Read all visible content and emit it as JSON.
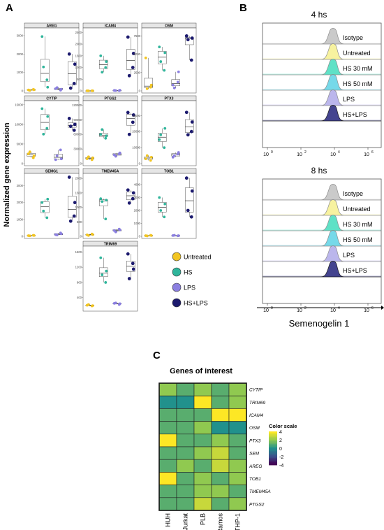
{
  "panels": {
    "a": "A",
    "b": "B",
    "c": "C"
  },
  "panel_a": {
    "ylabel": "Normalized gene expression",
    "colors": {
      "Untreated": "#f2c522",
      "HS": "#2fb59b",
      "LPS": "#8b7fe0",
      "HS+LPS": "#1c1a6e"
    },
    "legend": [
      "Untreated",
      "HS",
      "LPS",
      "HS+LPS"
    ],
    "facets": [
      {
        "gene": "AREG",
        "ticks": [
          "0",
          "1000",
          "2000",
          "3000"
        ],
        "ymax": 3300,
        "points": [
          [
            50,
            80,
            30,
            60
          ],
          [
            2950,
            600,
            1300,
            200
          ],
          [
            120,
            40,
            180,
            90
          ],
          [
            2000,
            400,
            150,
            1450
          ]
        ]
      },
      {
        "gene": "ICAM4",
        "ticks": [
          "0",
          "500",
          "1000",
          "1500",
          "2000",
          "2500"
        ],
        "ymax": 2600,
        "points": [
          [
            5,
            8,
            3,
            6
          ],
          [
            1500,
            1000,
            800,
            1250
          ],
          [
            20,
            10,
            15,
            30
          ],
          [
            2300,
            1000,
            650,
            1600
          ]
        ]
      },
      {
        "gene": "OSM",
        "ticks": [
          "0",
          "2500",
          "5000",
          "7500"
        ],
        "ymax": 8300,
        "points": [
          [
            4500,
            500,
            300,
            800
          ],
          [
            6000,
            2800,
            4000,
            5200
          ],
          [
            800,
            1200,
            400,
            2600
          ],
          [
            7500,
            4200,
            7000,
            7200
          ]
        ]
      },
      {
        "gene": "CYTIP",
        "ticks": [
          "0",
          "5000",
          "10000",
          "15000"
        ],
        "ymax": 15500,
        "points": [
          [
            2500,
            1500,
            3000,
            2000
          ],
          [
            14000,
            9000,
            7500,
            12000
          ],
          [
            1000,
            3500,
            2000,
            1200
          ],
          [
            11500,
            8500,
            9500,
            10000
          ]
        ]
      },
      {
        "gene": "PTGS2",
        "ticks": [
          "0",
          "30000",
          "60000",
          "90000",
          "120000"
        ],
        "ymax": 125000,
        "points": [
          [
            10000,
            8000,
            14000,
            12000
          ],
          [
            60000,
            52000,
            70000,
            57000
          ],
          [
            18000,
            20000,
            15000,
            22000
          ],
          [
            105000,
            85000,
            60000,
            100000
          ]
        ]
      },
      {
        "gene": "PTX3",
        "ticks": [
          "0",
          "10000",
          "20000",
          "30000"
        ],
        "ymax": 38000,
        "points": [
          [
            3000,
            2000,
            5000,
            4000
          ],
          [
            15000,
            10000,
            18000,
            22000
          ],
          [
            4000,
            6000,
            5000,
            7000
          ],
          [
            32000,
            20000,
            18000,
            26000
          ]
        ]
      },
      {
        "gene": "SEMG1",
        "ticks": [
          "0",
          "1000",
          "2000",
          "3000"
        ],
        "ymax": 3600,
        "points": [
          [
            40,
            60,
            30,
            50
          ],
          [
            2000,
            1100,
            1500,
            2200
          ],
          [
            100,
            200,
            80,
            150
          ],
          [
            3500,
            1200,
            900,
            2000
          ]
        ]
      },
      {
        "gene": "TMEM45A",
        "ticks": [
          "0",
          "500",
          "1000",
          "1500",
          "2000"
        ],
        "ymax": 2100,
        "points": [
          [
            50,
            80,
            30,
            60
          ],
          [
            1300,
            600,
            1200,
            1250
          ],
          [
            200,
            250,
            150,
            220
          ],
          [
            1600,
            1300,
            1150,
            1500
          ]
        ]
      },
      {
        "gene": "TOB1",
        "ticks": [
          "0",
          "1000",
          "2000",
          "3000",
          "4000"
        ],
        "ymax": 4700,
        "points": [
          [
            50,
            80,
            30,
            60
          ],
          [
            3000,
            1500,
            2000,
            2500
          ],
          [
            60,
            40,
            80,
            50
          ],
          [
            4500,
            1500,
            2000,
            3500
          ]
        ]
      },
      {
        "gene": "TRIM69",
        "ticks": [
          "400",
          "800",
          "1200",
          "1600"
        ],
        "ymax": 1700,
        "ymin": 100,
        "points": [
          [
            200,
            180,
            220,
            190
          ],
          [
            1450,
            800,
            1000,
            1100
          ],
          [
            250,
            220,
            260,
            240
          ],
          [
            1550,
            1300,
            900,
            1150
          ]
        ]
      }
    ]
  },
  "panel_b": {
    "xlabel": "Semenogelin 1",
    "xticks": [
      "10^0",
      "10^2",
      "10^4",
      "10^6"
    ],
    "groups": [
      {
        "title": "4 hs",
        "rows": [
          "Isotype",
          "Untreated",
          "HS 30 mM",
          "HS 50 mM",
          "LPS",
          "HS+LPS"
        ]
      },
      {
        "title": "8 hs",
        "rows": [
          "Isotype",
          "Untreated",
          "HS 30 mM",
          "HS 50 mM",
          "LPS",
          "HS+LPS"
        ]
      }
    ],
    "fill_colors": [
      "#c8c8c8",
      "#f7f29a",
      "#57e0c4",
      "#6fd7e8",
      "#b8b3ec",
      "#3a3a8a"
    ]
  },
  "panel_c": {
    "title": "Genes of interest",
    "rows": [
      "CYTIP",
      "TRIM69",
      "ICAM4",
      "OSM",
      "PTX3",
      "SEM",
      "AREG",
      "TOB1",
      "TMEM45A",
      "PTGS2"
    ],
    "cols": [
      "HUH",
      "Jurkat",
      "PLB",
      "Ramos",
      "THP-1"
    ],
    "legend_title": "Color scale",
    "legend_ticks": [
      "4",
      "2",
      "0",
      "-2",
      "-4"
    ],
    "values": [
      [
        2,
        1,
        2,
        1,
        2
      ],
      [
        0,
        0,
        4,
        1,
        2
      ],
      [
        1,
        1,
        1,
        4,
        4
      ],
      [
        1,
        1,
        2,
        0,
        0
      ],
      [
        4,
        1,
        1,
        2,
        1
      ],
      [
        1,
        1,
        2,
        3,
        1
      ],
      [
        1,
        2,
        1,
        3,
        2
      ],
      [
        4,
        1,
        2,
        1,
        2
      ],
      [
        1,
        1,
        2,
        2,
        1
      ],
      [
        1,
        1,
        3,
        1,
        2
      ]
    ]
  }
}
